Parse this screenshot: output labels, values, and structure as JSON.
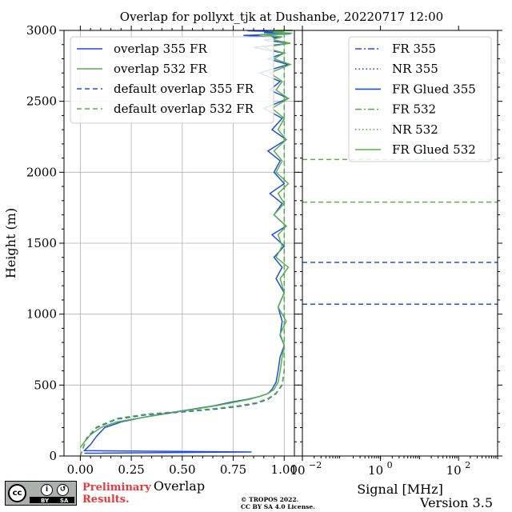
{
  "title": "Overlap for pollyxt_tjk at Dushanbe, 20220717 12:00",
  "colors": {
    "c355": "#1f4fe0",
    "c532": "#5bb048",
    "grid": "#b0b0b0"
  },
  "chart_data": [
    {
      "type": "line",
      "xlabel": "Overlap",
      "ylabel": "Height (m)",
      "xlim": [
        -0.08,
        1.05
      ],
      "ylim": [
        0,
        3000
      ],
      "xticks": [
        0.0,
        0.25,
        0.5,
        0.75,
        1.0
      ],
      "xtick_labels": [
        "0.00",
        "0.25",
        "0.50",
        "0.75",
        "1.00"
      ],
      "yticks": [
        0,
        500,
        1000,
        1500,
        2000,
        2500,
        3000
      ],
      "ytick_labels": [
        "0",
        "500",
        "1000",
        "1500",
        "2000",
        "2500",
        "3000"
      ],
      "grid": true,
      "legend_placement": "top-left",
      "series": [
        {
          "name": "overlap 355 FR",
          "color": "#1f4fe0",
          "dash": "solid",
          "x": [
            0.02,
            0.84,
            0.02,
            0.05,
            0.08,
            0.12,
            0.2,
            0.3,
            0.42,
            0.55,
            0.66,
            0.74,
            0.82,
            0.88,
            0.92,
            0.94,
            0.96,
            0.97,
            0.98,
            1.0,
            0.98,
            0.99,
            0.97,
            1.0,
            0.96,
            0.99,
            0.95,
            1.0,
            0.94,
            1.01,
            0.95,
            0.99,
            0.93,
            1.0,
            0.95,
            0.98,
            0.92,
            1.01,
            0.94,
            0.99,
            0.9,
            1.02,
            0.93,
            0.98,
            0.88,
            1.02,
            0.92,
            1.0,
            0.85,
            1.03,
            0.9,
            0.98,
            0.8,
            1.03,
            0.9,
            0.96,
            0.82,
            1.04
          ],
          "y": [
            20,
            28,
            38,
            80,
            140,
            200,
            240,
            270,
            300,
            330,
            355,
            380,
            400,
            420,
            440,
            470,
            520,
            600,
            700,
            780,
            850,
            950,
            1050,
            1150,
            1250,
            1330,
            1400,
            1480,
            1560,
            1620,
            1700,
            1780,
            1850,
            1920,
            2000,
            2080,
            2150,
            2230,
            2300,
            2380,
            2450,
            2520,
            2580,
            2640,
            2700,
            2760,
            2800,
            2840,
            2880,
            2910,
            2930,
            2950,
            2965,
            2975,
            2985,
            2992,
            2997,
            3000
          ]
        },
        {
          "name": "overlap 532 FR",
          "color": "#5bb048",
          "dash": "solid",
          "x": [
            0.0,
            0.02,
            0.05,
            0.1,
            0.18,
            0.3,
            0.43,
            0.56,
            0.67,
            0.76,
            0.83,
            0.88,
            0.92,
            0.95,
            0.97,
            0.98,
            0.99,
            1.0,
            0.98,
            1.01,
            0.97,
            1.0,
            0.98,
            1.02,
            0.96,
            0.99,
            0.97,
            1.01,
            0.95,
            1.0,
            0.97,
            1.02,
            0.96,
            0.99,
            0.95,
            1.01,
            0.97,
            1.0,
            0.94,
            1.02,
            0.96,
            0.99,
            0.93,
            1.03,
            0.95,
            1.0,
            0.9,
            1.03,
            0.94,
            0.99,
            0.88,
            1.04,
            0.95,
            1.0,
            0.92,
            1.04
          ],
          "y": [
            60,
            100,
            150,
            200,
            240,
            270,
            300,
            330,
            355,
            380,
            400,
            420,
            440,
            470,
            520,
            600,
            700,
            780,
            860,
            950,
            1050,
            1150,
            1250,
            1330,
            1400,
            1480,
            1560,
            1620,
            1700,
            1780,
            1850,
            1920,
            2000,
            2080,
            2150,
            2230,
            2300,
            2380,
            2450,
            2520,
            2580,
            2640,
            2700,
            2760,
            2800,
            2840,
            2880,
            2910,
            2935,
            2955,
            2970,
            2980,
            2988,
            2994,
            2998,
            3000
          ]
        },
        {
          "name": "default overlap 355 FR",
          "color": "#1f4fe0",
          "dash": "dashed",
          "x": [
            0.0,
            0.03,
            0.08,
            0.18,
            0.32,
            0.5,
            0.66,
            0.78,
            0.86,
            0.92,
            0.96,
            0.99,
            1.0,
            1.0
          ],
          "y": [
            0,
            120,
            200,
            260,
            290,
            310,
            330,
            350,
            370,
            400,
            440,
            500,
            600,
            3000
          ]
        },
        {
          "name": "default overlap 532 FR",
          "color": "#5bb048",
          "dash": "dashed",
          "x": [
            0.0,
            0.03,
            0.08,
            0.18,
            0.32,
            0.5,
            0.66,
            0.78,
            0.86,
            0.92,
            0.96,
            0.99,
            1.0,
            1.0
          ],
          "y": [
            0,
            125,
            205,
            265,
            295,
            315,
            335,
            355,
            375,
            405,
            445,
            505,
            605,
            3000
          ]
        }
      ]
    },
    {
      "type": "line",
      "xlabel": "Signal [MHz]",
      "xscale": "log",
      "xlim": [
        0.01,
        1000
      ],
      "ylim": [
        0,
        3000
      ],
      "xticks": [
        0.01,
        1,
        100
      ],
      "xtick_labels": [
        "10",
        "10",
        "10"
      ],
      "xtick_exponents": [
        "−2",
        "0",
        "2"
      ],
      "grid": false,
      "legend_placement": "top-right",
      "series": [
        {
          "name": "FR 355",
          "color": "#1f4fe0",
          "dash": "dashdot",
          "y_lines": []
        },
        {
          "name": "NR 355",
          "color": "#1f4fe0",
          "dash": "dotted",
          "y_lines": []
        },
        {
          "name": "FR Glued 355",
          "color": "#1f4fe0",
          "dash": "solid",
          "y_lines": []
        },
        {
          "name": "FR 532",
          "color": "#5bb048",
          "dash": "dashdot",
          "y_lines": []
        },
        {
          "name": "NR 532",
          "color": "#5bb048",
          "dash": "dotted",
          "y_lines": []
        },
        {
          "name": "FR Glued 532",
          "color": "#5bb048",
          "dash": "solid",
          "y_lines": []
        }
      ],
      "hlines": [
        {
          "y": 1070,
          "color": "#1f4fe0"
        },
        {
          "y": 1365,
          "color": "#1f4fe0"
        },
        {
          "y": 1790,
          "color": "#5bb048"
        },
        {
          "y": 2090,
          "color": "#5bb048"
        }
      ]
    }
  ],
  "footer": {
    "cc_mark": "cc",
    "cc_by": "BY",
    "cc_sa": "SA",
    "prelim_line1": "Preliminary",
    "prelim_line2": "Results.",
    "copy_line1": "© TROPOS 2022.",
    "copy_line2": "CC BY SA 4.0 License.",
    "version": "Version 3.5"
  }
}
